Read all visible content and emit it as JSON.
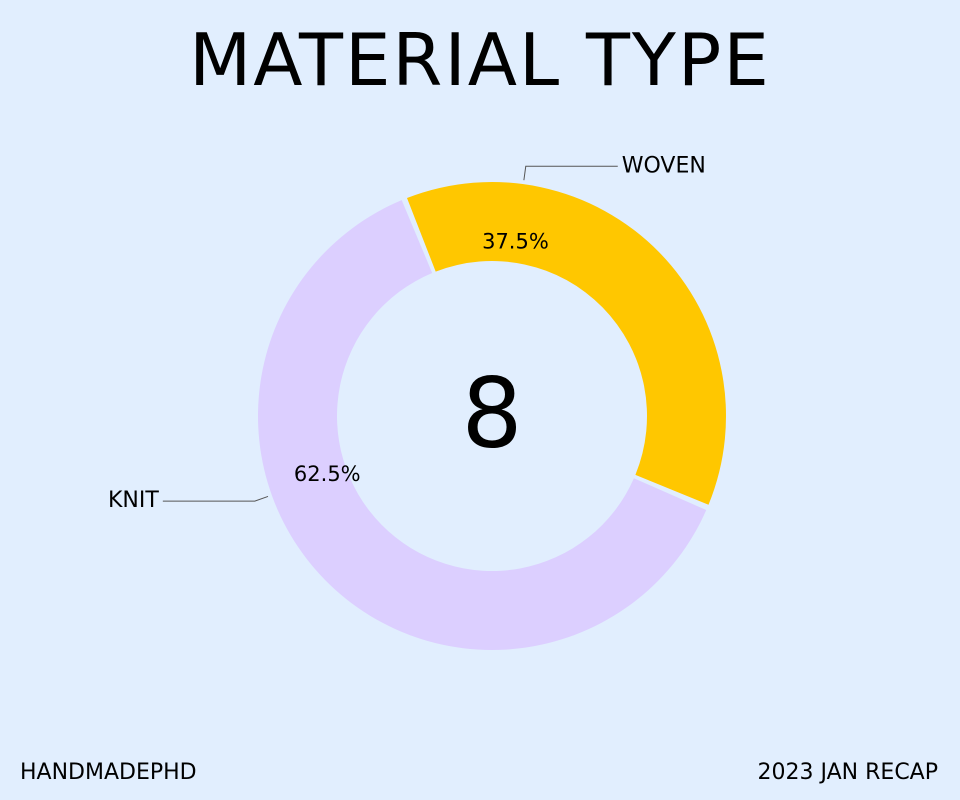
{
  "title": "MATERIAL TYPE",
  "footer": {
    "left": "HANDMADEPHD",
    "right": "2023 JAN RECAP"
  },
  "chart_data": {
    "type": "pie",
    "variant": "donut",
    "center_label": "8",
    "slices": [
      {
        "label": "WOVEN",
        "value": 3,
        "percent_label": "37.5%",
        "color": "#ffc700"
      },
      {
        "label": "KNIT",
        "value": 5,
        "percent_label": "62.5%",
        "color": "#dccfff"
      }
    ],
    "background": "#e1eefe"
  }
}
